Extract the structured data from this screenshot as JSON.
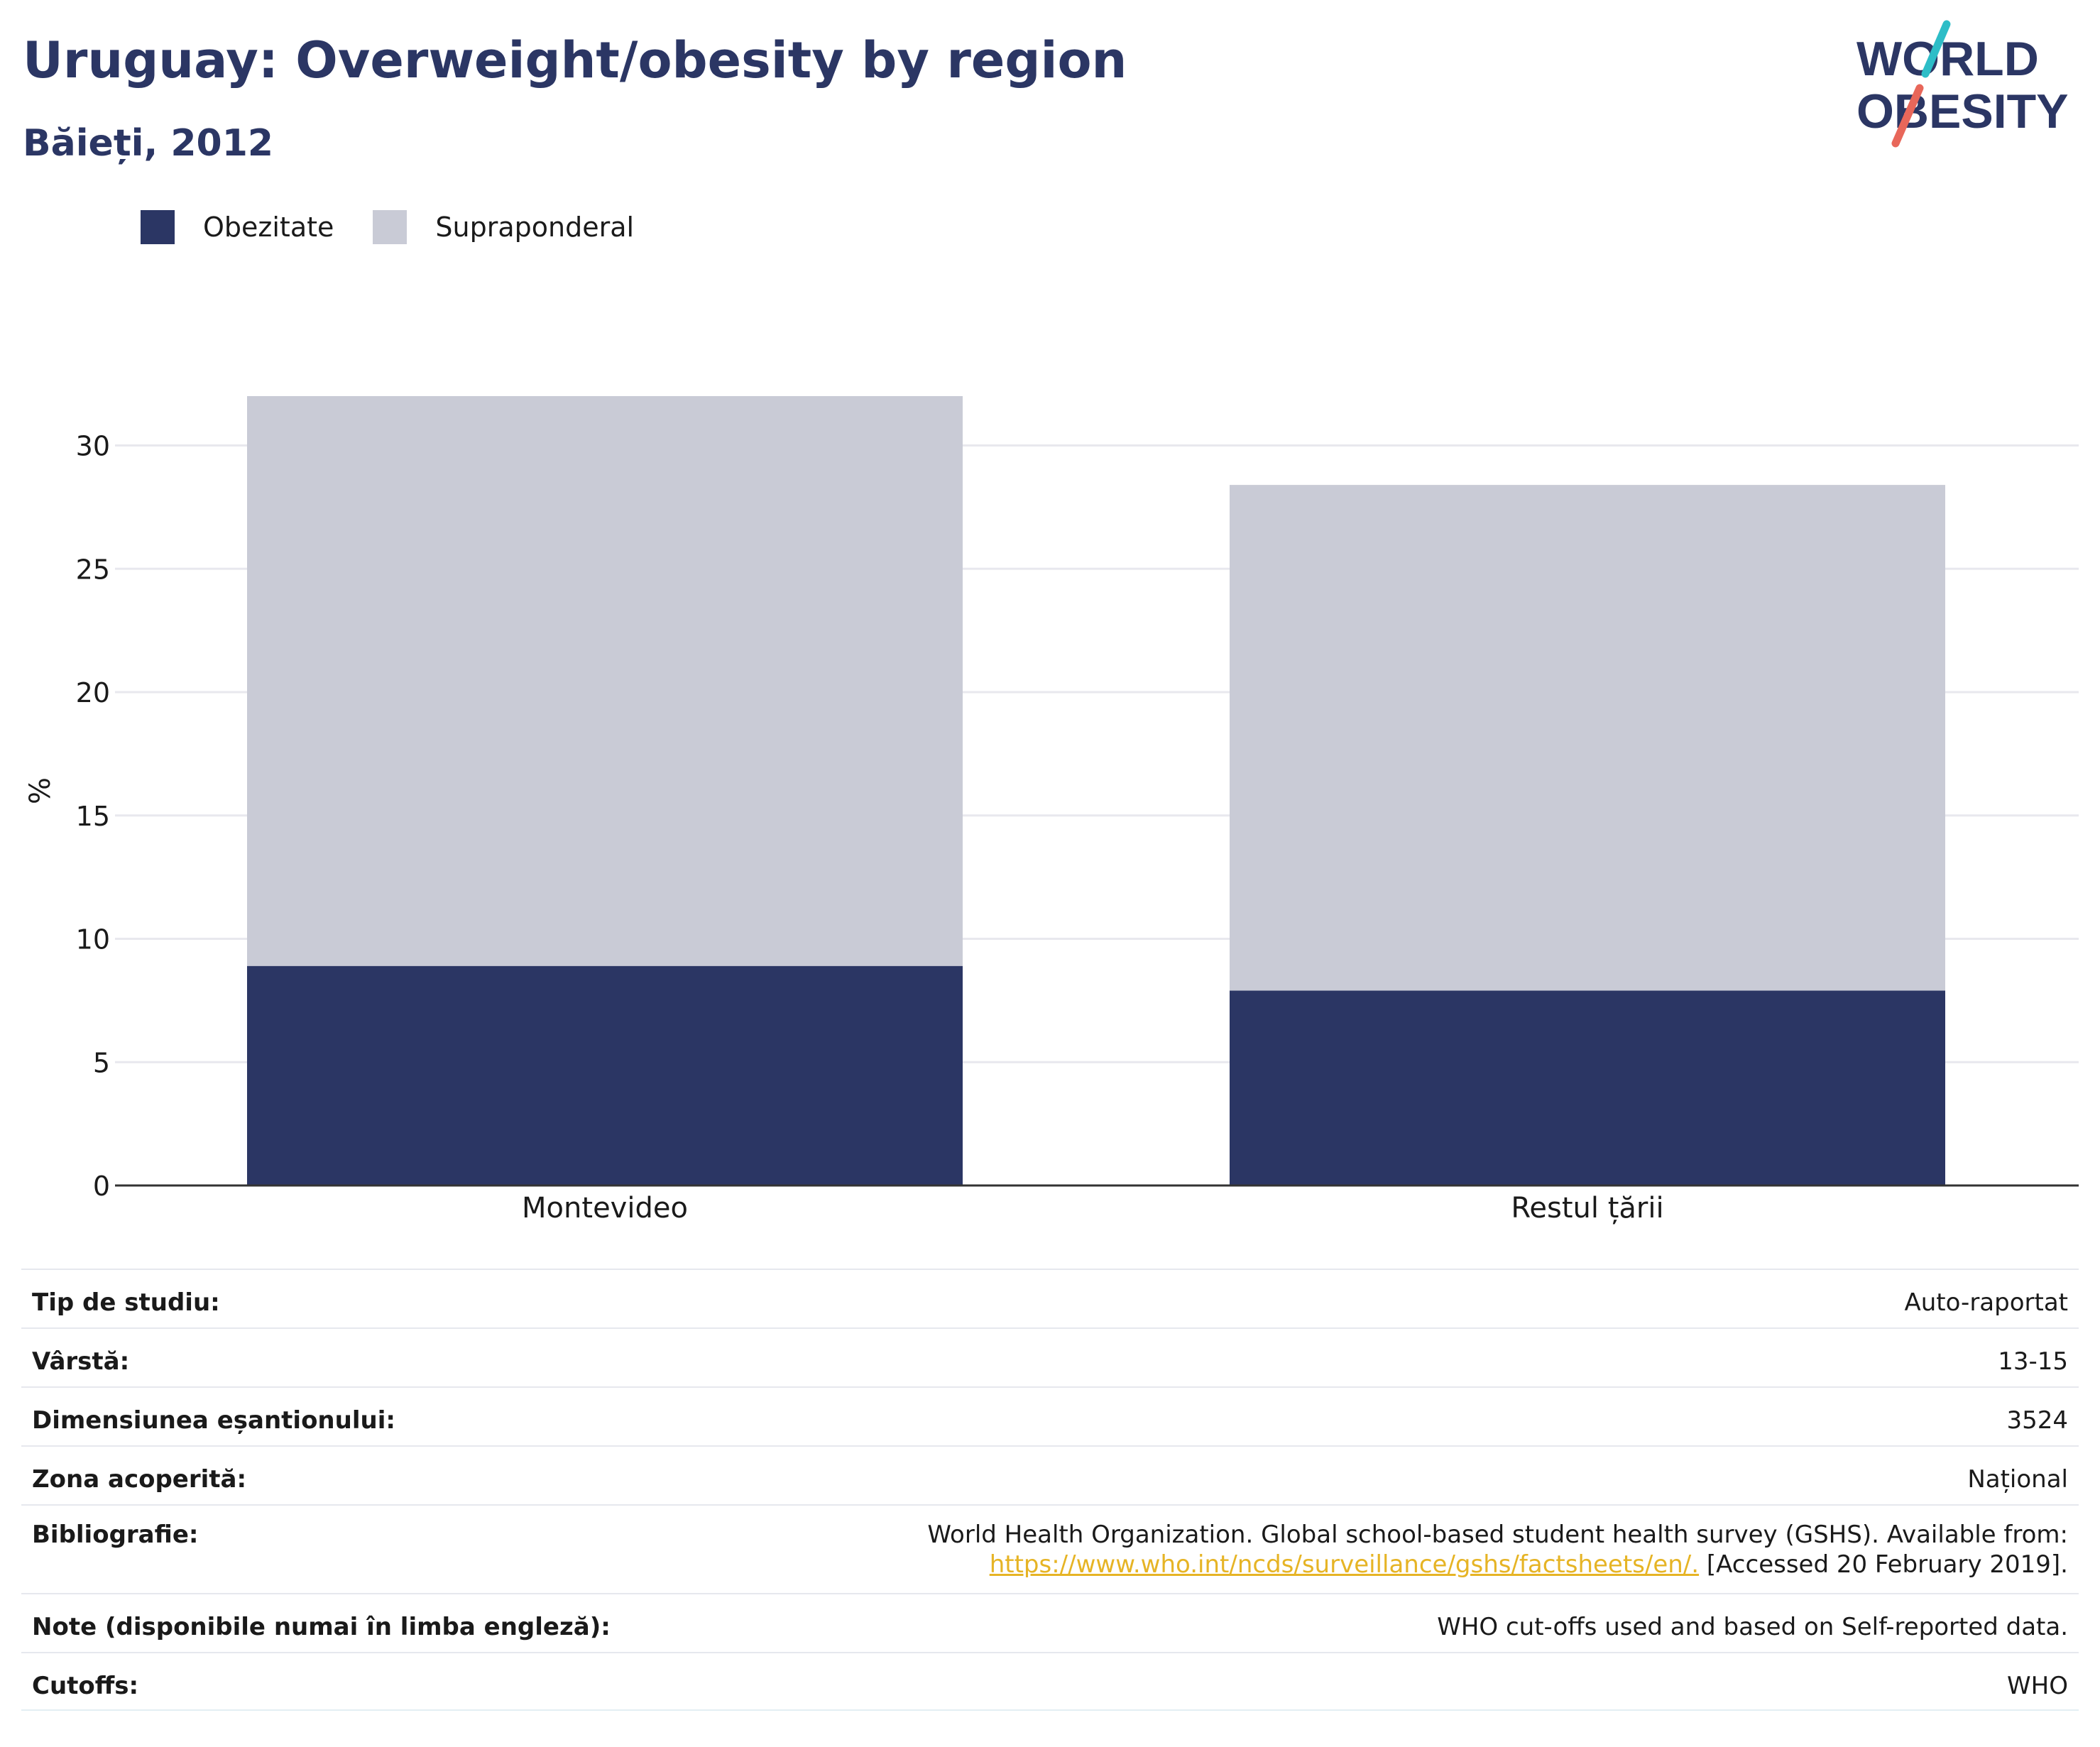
{
  "header": {
    "title": "Uruguay: Overweight/obesity by region",
    "subtitle": "Băieți, 2012"
  },
  "logo": {
    "line1": "WORLD",
    "line2": "OBESITY",
    "slash_colors": [
      "#2dbdc7",
      "#e8675a"
    ]
  },
  "colors": {
    "obesity": "#2b3664",
    "overweight": "#c9cbd6",
    "title": "#2b3664",
    "link": "#e6b425"
  },
  "chart_data": {
    "type": "bar",
    "stacked": true,
    "categories": [
      "Montevideo",
      "Restul țării"
    ],
    "series": [
      {
        "name": "Obezitate",
        "values": [
          8.9,
          7.9
        ],
        "color": "#2b3664"
      },
      {
        "name": "Supraponderal",
        "values": [
          23.1,
          20.5
        ],
        "color": "#c9cbd6"
      }
    ],
    "ylabel": "%",
    "xlabel": "",
    "ylim": [
      0,
      32
    ],
    "yticks": [
      0,
      5,
      10,
      15,
      20,
      25,
      30
    ],
    "grid": true,
    "legend_position": "top-left"
  },
  "info": {
    "rows": [
      {
        "label": "Tip de studiu:",
        "value": "Auto-raportat"
      },
      {
        "label": "Vârstă:",
        "value": "13-15"
      },
      {
        "label": "Dimensiunea eșantionului:",
        "value": "3524"
      },
      {
        "label": "Zona acoperită:",
        "value": "Național"
      },
      {
        "label": "Bibliografie:",
        "value_line1": "World Health Organization. Global school-based student health survey (GSHS). Available from:",
        "link": "https://www.who.int/ncds/surveillance/gshs/factsheets/en/.",
        "value_after_link": " [Accessed 20 February 2019]."
      },
      {
        "label": "Note (disponibile numai în limba engleză):",
        "value": "WHO cut-offs used and based on Self-reported data."
      },
      {
        "label": "Cutoffs:",
        "value": "WHO"
      }
    ]
  }
}
